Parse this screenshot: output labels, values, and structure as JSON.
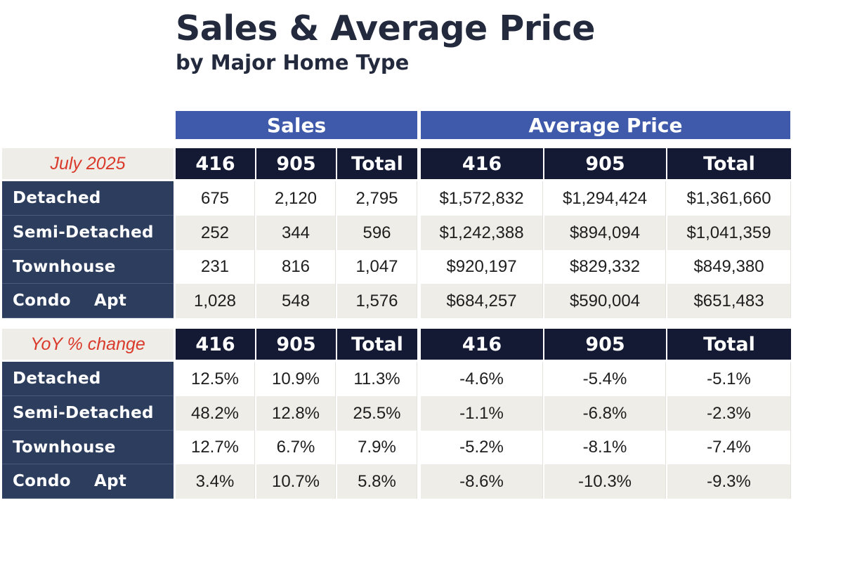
{
  "title": "Sales & Average Price",
  "subtitle": "by Major Home Type",
  "group_headers": {
    "sales": "Sales",
    "avg_price": "Average Price"
  },
  "sections": [
    {
      "label": "July 2025",
      "columns": [
        "416",
        "905",
        "Total",
        "416",
        "905",
        "Total"
      ],
      "rows": [
        {
          "label": "Detached",
          "values": [
            "675",
            "2,120",
            "2,795",
            "$1,572,832",
            "$1,294,424",
            "$1,361,660"
          ]
        },
        {
          "label": "Semi-Detached",
          "values": [
            "252",
            "344",
            "596",
            "$1,242,388",
            "$894,094",
            "$1,041,359"
          ]
        },
        {
          "label": "Townhouse",
          "values": [
            "231",
            "816",
            "1,047",
            "$920,197",
            "$829,332",
            "$849,380"
          ]
        },
        {
          "label": "Condo    Apt",
          "values": [
            "1,028",
            "548",
            "1,576",
            "$684,257",
            "$590,004",
            "$651,483"
          ]
        }
      ]
    },
    {
      "label": "YoY % change",
      "columns": [
        "416",
        "905",
        "Total",
        "416",
        "905",
        "Total"
      ],
      "rows": [
        {
          "label": "Detached",
          "values": [
            "12.5%",
            "10.9%",
            "11.3%",
            "-4.6%",
            "-5.4%",
            "-5.1%"
          ]
        },
        {
          "label": "Semi-Detached",
          "values": [
            "48.2%",
            "12.8%",
            "25.5%",
            "-1.1%",
            "-6.8%",
            "-2.3%"
          ]
        },
        {
          "label": "Townhouse",
          "values": [
            "12.7%",
            "6.7%",
            "7.9%",
            "-5.2%",
            "-8.1%",
            "-7.4%"
          ]
        },
        {
          "label": "Condo    Apt",
          "values": [
            "3.4%",
            "10.7%",
            "5.8%",
            "-8.6%",
            "-10.3%",
            "-9.3%"
          ]
        }
      ]
    }
  ],
  "colors": {
    "group_header": "#3f5aab",
    "col_header": "#141a34",
    "row_label": "#2d3d5e",
    "section_label_text": "#d93a2b",
    "alt_row": "#efede7"
  },
  "chart_data": {
    "type": "table",
    "title": "Sales & Average Price",
    "subtitle": "by Major Home Type",
    "column_groups": [
      {
        "name": "Sales",
        "columns": [
          "416",
          "905",
          "Total"
        ]
      },
      {
        "name": "Average Price",
        "columns": [
          "416",
          "905",
          "Total"
        ]
      }
    ],
    "categories": [
      "Detached",
      "Semi-Detached",
      "Townhouse",
      "Condo    Apt"
    ],
    "series": [
      {
        "name": "July 2025",
        "sales": {
          "416": [
            675,
            252,
            231,
            1028
          ],
          "905": [
            2120,
            344,
            816,
            548
          ],
          "Total": [
            2795,
            596,
            1047,
            1576
          ]
        },
        "average_price": {
          "416": [
            1572832,
            1242388,
            920197,
            684257
          ],
          "905": [
            1294424,
            894094,
            829332,
            590004
          ],
          "Total": [
            1361660,
            1041359,
            849380,
            651483
          ]
        }
      },
      {
        "name": "YoY % change",
        "sales": {
          "416": [
            12.5,
            48.2,
            12.7,
            3.4
          ],
          "905": [
            10.9,
            12.8,
            6.7,
            10.7
          ],
          "Total": [
            11.3,
            25.5,
            7.9,
            5.8
          ]
        },
        "average_price": {
          "416": [
            -4.6,
            -1.1,
            -5.2,
            -8.6
          ],
          "905": [
            -5.4,
            -6.8,
            -8.1,
            -10.3
          ],
          "Total": [
            -5.1,
            -2.3,
            -7.4,
            -9.3
          ]
        }
      }
    ]
  }
}
